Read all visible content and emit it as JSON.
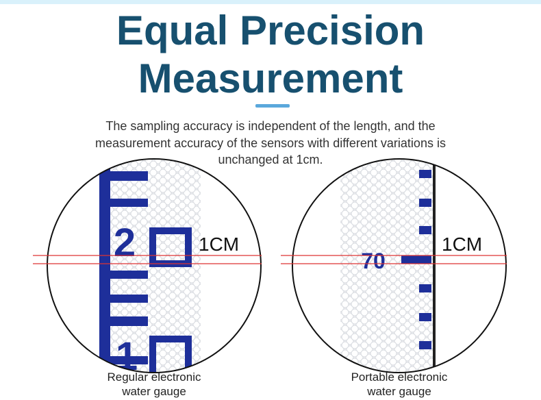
{
  "header": {
    "title_lines": [
      "Equal Precision",
      "Measurement"
    ]
  },
  "description": [
    "The sampling accuracy is independent of the length, and the",
    "measurement accuracy of the sensors with different variations is",
    "unchanged at 1cm."
  ],
  "panels": [
    {
      "scale_label": "1CM",
      "gauge_numbers": [
        "2",
        "1"
      ],
      "caption": [
        "Regular electronic",
        "water gauge"
      ]
    },
    {
      "scale_label": "1CM",
      "gauge_numbers": [
        "70"
      ],
      "caption": [
        "Portable electronic",
        "water gauge"
      ]
    }
  ]
}
